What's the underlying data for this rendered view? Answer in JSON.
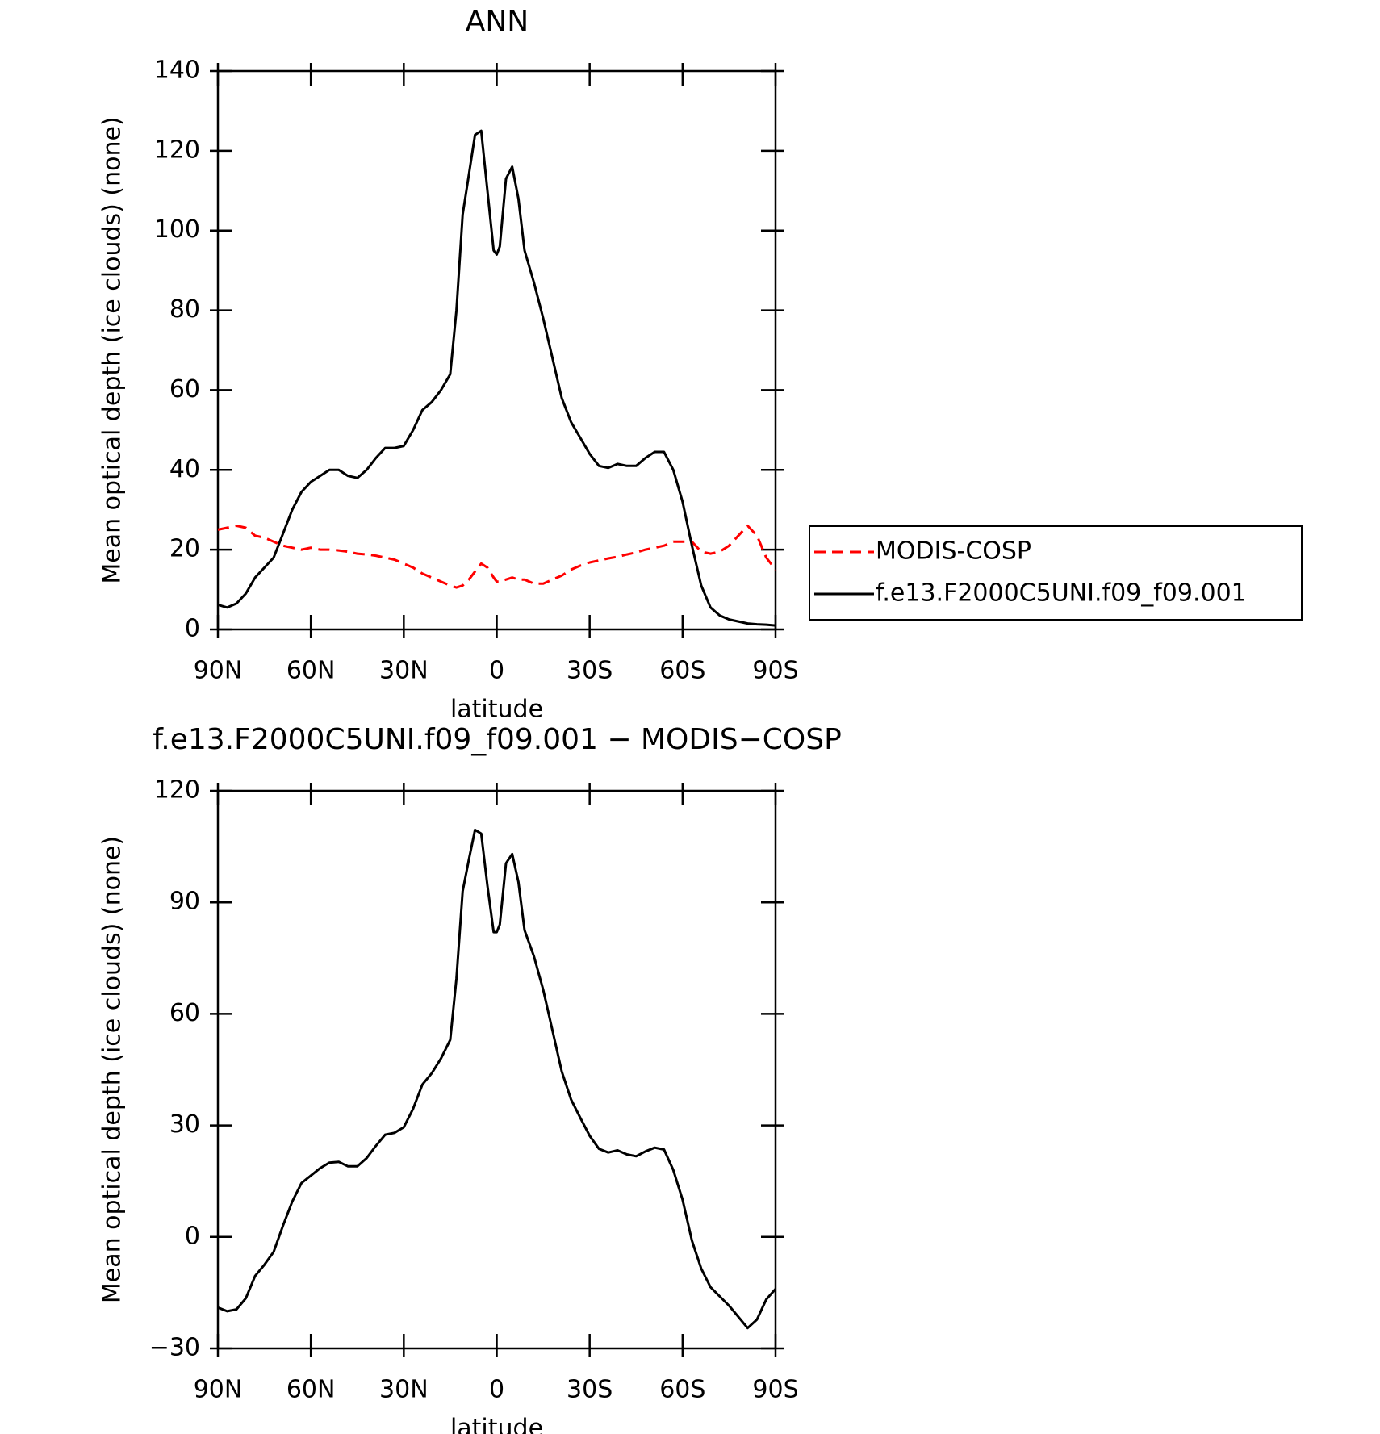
{
  "chart_data": [
    {
      "type": "line",
      "title": "ANN",
      "xlabel": "latitude",
      "ylabel": "Mean optical depth (ice clouds) (none)",
      "x": [
        90,
        87,
        84,
        81,
        78,
        75,
        72,
        69,
        66,
        63,
        60,
        57,
        54,
        51,
        48,
        45,
        42,
        39,
        36,
        33,
        30,
        27,
        24,
        21,
        18,
        15,
        13,
        11,
        9,
        7,
        5,
        3,
        1,
        0,
        -1,
        -3,
        -5,
        -7,
        -9,
        -12,
        -15,
        -18,
        -21,
        -24,
        -27,
        -30,
        -33,
        -36,
        -39,
        -42,
        -45,
        -48,
        -51,
        -54,
        -57,
        -60,
        -63,
        -66,
        -69,
        -72,
        -75,
        -78,
        -81,
        -84,
        -87,
        -90
      ],
      "series": [
        {
          "name": "MODIS-COSP",
          "color": "#ff0000",
          "linestyle": "dashed",
          "values": [
            25,
            25.5,
            26,
            25.5,
            23.5,
            23,
            22,
            21,
            20.5,
            20,
            20.5,
            20,
            20,
            19.8,
            19.5,
            19,
            18.8,
            18.5,
            18,
            17.5,
            16.5,
            15.5,
            14,
            13,
            12,
            11,
            10.5,
            11,
            12.5,
            14.5,
            16.5,
            15.5,
            13,
            12,
            12,
            12.5,
            13,
            12.5,
            12.5,
            11.5,
            11.5,
            12.5,
            13.5,
            15,
            16,
            16.8,
            17.3,
            17.8,
            18.2,
            18.8,
            19.3,
            20,
            20.5,
            21,
            22,
            22,
            22,
            19.5,
            19,
            19.5,
            21,
            23.5,
            26,
            23.5,
            18,
            15
          ]
        },
        {
          "name": "f.e13.F2000C5UNI.f09_f09.001",
          "color": "#000000",
          "linestyle": "solid",
          "values": [
            6.2,
            5.5,
            6.5,
            9,
            13,
            15.5,
            18,
            24,
            30,
            34.5,
            37,
            38.5,
            40,
            40,
            38.5,
            38,
            40,
            43,
            45.5,
            45.5,
            46,
            50,
            55,
            57,
            60,
            64,
            80,
            104,
            114,
            124,
            125,
            110,
            95,
            94,
            96,
            113,
            116,
            108,
            95,
            87,
            78,
            68,
            58,
            52,
            48,
            44,
            41,
            40.5,
            41.5,
            41,
            41,
            43,
            44.5,
            44.5,
            40,
            32,
            21,
            11,
            5.5,
            3.5,
            2.5,
            2,
            1.5,
            1.3,
            1.2,
            1
          ]
        }
      ],
      "xlim": [
        90,
        -90
      ],
      "ylim": [
        0,
        140
      ],
      "xticks": [
        {
          "value": 90,
          "label": "90N"
        },
        {
          "value": 60,
          "label": "60N"
        },
        {
          "value": 30,
          "label": "30N"
        },
        0,
        {
          "value": -30,
          "label": "30S"
        },
        {
          "value": -60,
          "label": "60S"
        },
        {
          "value": -90,
          "label": "90S"
        }
      ],
      "yticks": [
        0,
        20,
        40,
        60,
        80,
        100,
        120,
        140
      ],
      "legend": "right"
    },
    {
      "type": "line",
      "title": "f.e13.F2000C5UNI.f09_f09.001 − MODIS−COSP",
      "xlabel": "latitude",
      "ylabel": "Mean optical depth (ice clouds) (none)",
      "x": [
        90,
        87,
        84,
        81,
        78,
        75,
        72,
        69,
        66,
        63,
        60,
        57,
        54,
        51,
        48,
        45,
        42,
        39,
        36,
        33,
        30,
        27,
        24,
        21,
        18,
        15,
        13,
        11,
        9,
        7,
        5,
        3,
        1,
        0,
        -1,
        -3,
        -5,
        -7,
        -9,
        -12,
        -15,
        -18,
        -21,
        -24,
        -27,
        -30,
        -33,
        -36,
        -39,
        -42,
        -45,
        -48,
        -51,
        -54,
        -57,
        -60,
        -63,
        -66,
        -69,
        -72,
        -75,
        -78,
        -81,
        -84,
        -87,
        -90
      ],
      "series": [
        {
          "color": "#000000",
          "linestyle": "solid",
          "values": [
            -19,
            -20,
            -19.5,
            -16.5,
            -10.5,
            -7.5,
            -4,
            3,
            9.5,
            14.5,
            16.5,
            18.5,
            20,
            20.2,
            19,
            19,
            21.2,
            24.5,
            27.5,
            28,
            29.5,
            34.5,
            41,
            44,
            48,
            53,
            69.5,
            93,
            101.5,
            109.5,
            108.5,
            94.5,
            82,
            82,
            84,
            100.5,
            103,
            95.5,
            82.5,
            75.5,
            66.5,
            55.5,
            44.5,
            37,
            32,
            27.2,
            23.7,
            22.7,
            23.3,
            22.2,
            21.7,
            23,
            24,
            23.5,
            18,
            10,
            -1,
            -8.5,
            -13.5,
            -16,
            -18.5,
            -21.5,
            -24.5,
            -22.2,
            -16.8,
            -14
          ]
        }
      ],
      "xlim": [
        90,
        -90
      ],
      "ylim": [
        -30,
        120
      ],
      "xticks": [
        {
          "value": 90,
          "label": "90N"
        },
        {
          "value": 60,
          "label": "60N"
        },
        {
          "value": 30,
          "label": "30N"
        },
        0,
        {
          "value": -30,
          "label": "30S"
        },
        {
          "value": -60,
          "label": "60S"
        },
        {
          "value": -90,
          "label": "90S"
        }
      ],
      "yticks": [
        {
          "value": -30,
          "label": "−30"
        },
        0,
        30,
        60,
        90,
        120
      ]
    }
  ]
}
